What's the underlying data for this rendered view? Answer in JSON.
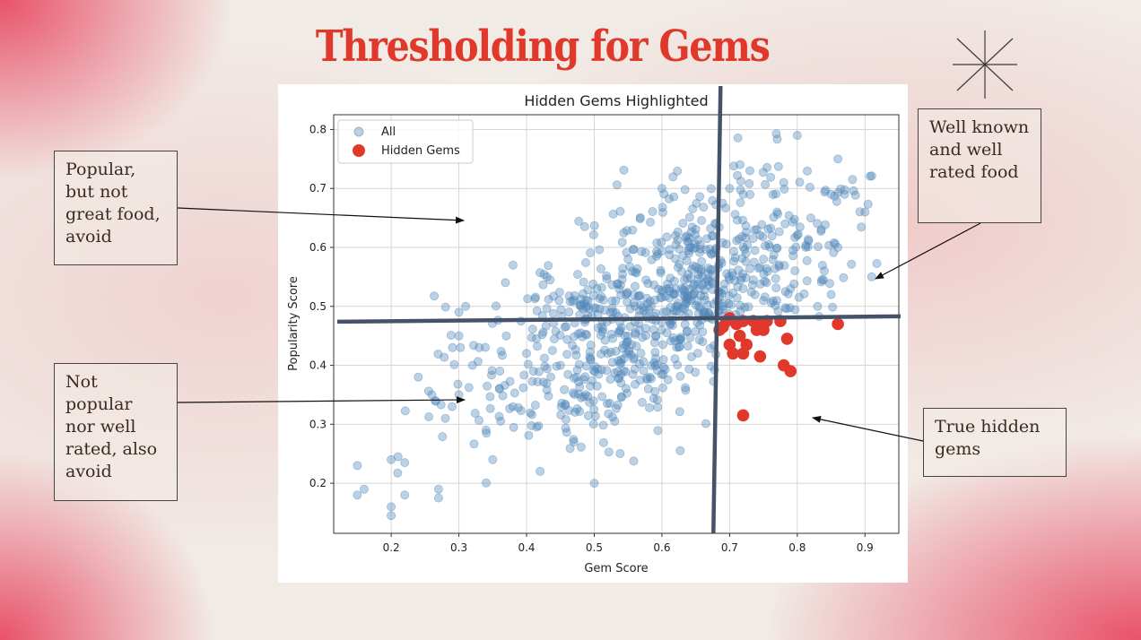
{
  "slide": {
    "title": "Thresholding for Gems",
    "icon": "starburst-icon"
  },
  "callouts": {
    "popular": "Popular,\nbut not\ngreat food,\navoid",
    "not_popular": "Not\npopular\nnor well\nrated, also\navoid",
    "well_known": "Well known\nand well\nrated food",
    "true_gems": "True hidden\ngems"
  },
  "colors": {
    "title": "#e0392b",
    "all_points": "#4f86b8",
    "gems": "#e0392b",
    "threshold_lines": "#45536a"
  },
  "chart_data": {
    "type": "scatter",
    "title": "Hidden Gems Highlighted",
    "xlabel": "Gem Score",
    "ylabel": "Popularity Score",
    "xlim": [
      0.115,
      0.95
    ],
    "ylim": [
      0.115,
      0.825
    ],
    "xticks": [
      0.2,
      0.3,
      0.4,
      0.5,
      0.6,
      0.7,
      0.8,
      0.9
    ],
    "yticks": [
      0.2,
      0.3,
      0.4,
      0.5,
      0.6,
      0.7,
      0.8
    ],
    "grid": true,
    "legend_position": "upper-left",
    "thresholds": {
      "gem_score": 0.68,
      "popularity": 0.48
    },
    "series": [
      {
        "name": "All",
        "distribution": {
          "count": 880,
          "center": [
            0.6,
            0.5
          ],
          "std": [
            0.13,
            0.11
          ],
          "corr": 0.6
        },
        "values": [
          [
            0.15,
            0.18
          ],
          [
            0.16,
            0.19
          ],
          [
            0.15,
            0.23
          ],
          [
            0.2,
            0.145
          ],
          [
            0.2,
            0.16
          ],
          [
            0.2,
            0.24
          ],
          [
            0.21,
            0.245
          ],
          [
            0.22,
            0.18
          ],
          [
            0.22,
            0.235
          ],
          [
            0.24,
            0.38
          ],
          [
            0.26,
            0.35
          ],
          [
            0.265,
            0.34
          ],
          [
            0.27,
            0.19
          ],
          [
            0.27,
            0.175
          ],
          [
            0.28,
            0.31
          ],
          [
            0.29,
            0.33
          ],
          [
            0.3,
            0.35
          ],
          [
            0.3,
            0.45
          ],
          [
            0.3,
            0.49
          ],
          [
            0.31,
            0.5
          ],
          [
            0.32,
            0.4
          ],
          [
            0.33,
            0.43
          ],
          [
            0.34,
            0.29
          ],
          [
            0.35,
            0.24
          ],
          [
            0.36,
            0.36
          ],
          [
            0.37,
            0.45
          ],
          [
            0.38,
            0.33
          ],
          [
            0.38,
            0.57
          ],
          [
            0.4,
            0.42
          ],
          [
            0.41,
            0.39
          ],
          [
            0.42,
            0.22
          ],
          [
            0.43,
            0.55
          ],
          [
            0.45,
            0.4
          ],
          [
            0.47,
            0.27
          ],
          [
            0.48,
            0.5
          ],
          [
            0.5,
            0.2
          ],
          [
            0.52,
            0.42
          ],
          [
            0.55,
            0.58
          ],
          [
            0.58,
            0.36
          ],
          [
            0.6,
            0.7
          ],
          [
            0.62,
            0.62
          ],
          [
            0.64,
            0.59
          ],
          [
            0.66,
            0.55
          ],
          [
            0.68,
            0.64
          ],
          [
            0.7,
            0.7
          ],
          [
            0.72,
            0.69
          ],
          [
            0.73,
            0.73
          ],
          [
            0.75,
            0.58
          ],
          [
            0.77,
            0.66
          ],
          [
            0.78,
            0.71
          ],
          [
            0.8,
            0.79
          ],
          [
            0.8,
            0.62
          ],
          [
            0.82,
            0.65
          ],
          [
            0.84,
            0.56
          ],
          [
            0.85,
            0.69
          ],
          [
            0.86,
            0.75
          ],
          [
            0.86,
            0.6
          ],
          [
            0.87,
            0.69
          ],
          [
            0.9,
            0.66
          ],
          [
            0.91,
            0.55
          ],
          [
            0.69,
            0.5
          ],
          [
            0.72,
            0.53
          ],
          [
            0.75,
            0.51
          ],
          [
            0.79,
            0.53
          ],
          [
            0.83,
            0.5
          ],
          [
            0.85,
            0.52
          ]
        ]
      },
      {
        "name": "Hidden Gems",
        "values": [
          [
            0.685,
            0.46
          ],
          [
            0.69,
            0.465
          ],
          [
            0.695,
            0.475
          ],
          [
            0.7,
            0.48
          ],
          [
            0.7,
            0.435
          ],
          [
            0.705,
            0.42
          ],
          [
            0.71,
            0.47
          ],
          [
            0.715,
            0.45
          ],
          [
            0.72,
            0.42
          ],
          [
            0.72,
            0.475
          ],
          [
            0.725,
            0.435
          ],
          [
            0.735,
            0.475
          ],
          [
            0.74,
            0.46
          ],
          [
            0.74,
            0.47
          ],
          [
            0.745,
            0.415
          ],
          [
            0.75,
            0.46
          ],
          [
            0.755,
            0.475
          ],
          [
            0.775,
            0.475
          ],
          [
            0.78,
            0.4
          ],
          [
            0.785,
            0.445
          ],
          [
            0.79,
            0.39
          ],
          [
            0.72,
            0.315
          ],
          [
            0.86,
            0.47
          ]
        ]
      }
    ]
  }
}
